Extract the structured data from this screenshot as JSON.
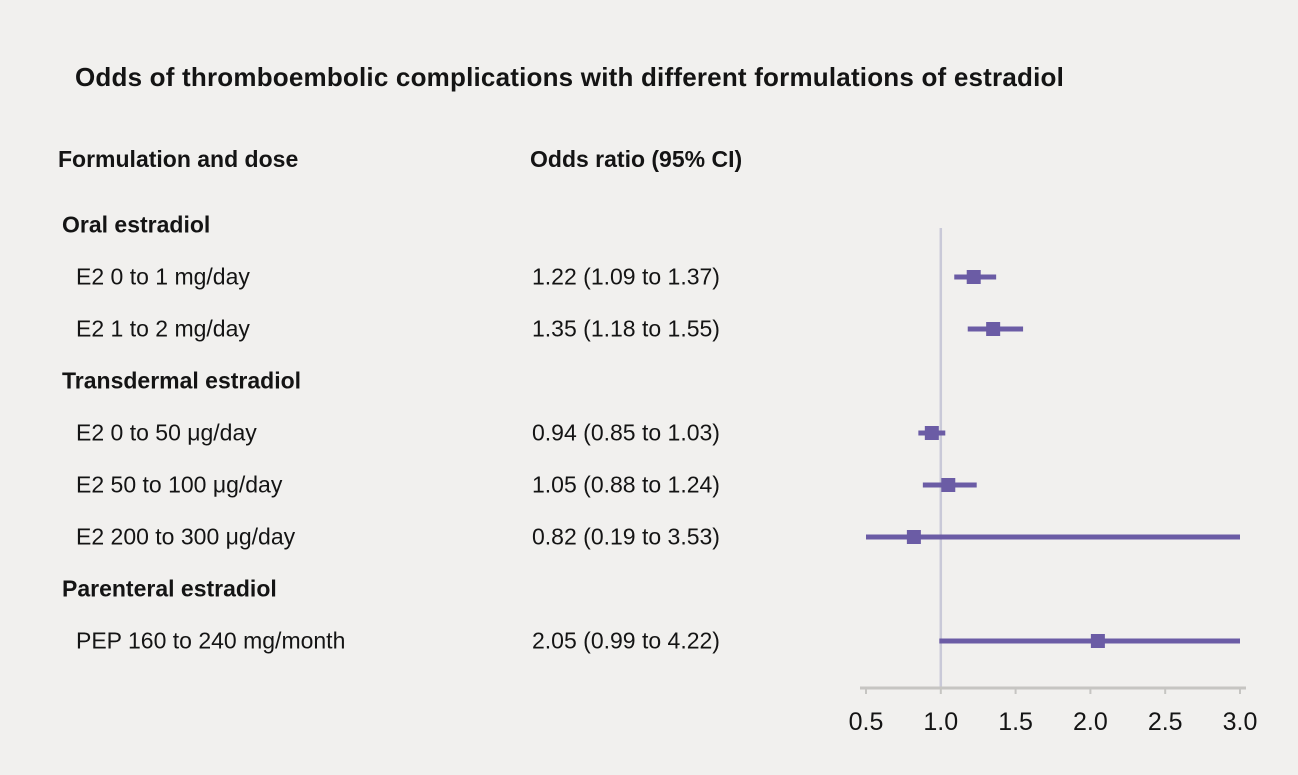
{
  "title": "Odds of thromboembolic complications with different formulations of estradiol",
  "columns": {
    "formulation": "Formulation and dose",
    "odds": "Odds ratio (95% CI)"
  },
  "chart_data": {
    "type": "forest",
    "xlim": [
      0.5,
      3.0
    ],
    "tick_values": [
      0.5,
      1.0,
      1.5,
      2.0,
      2.5,
      3.0
    ],
    "tick_labels": [
      "0.5",
      "1.0",
      "1.5",
      "2.0",
      "2.5",
      "3.0"
    ],
    "reference_line": 1.0,
    "rows": [
      {
        "type": "group",
        "label": "Oral estradiol"
      },
      {
        "type": "item",
        "label": "E2 0 to 1 mg/day",
        "ci_text": "1.22 (1.09 to 1.37)",
        "or": 1.22,
        "lo": 1.09,
        "hi": 1.37
      },
      {
        "type": "item",
        "label": "E2 1 to 2 mg/day",
        "ci_text": "1.35 (1.18 to 1.55)",
        "or": 1.35,
        "lo": 1.18,
        "hi": 1.55
      },
      {
        "type": "group",
        "label": "Transdermal estradiol"
      },
      {
        "type": "item",
        "label": "E2 0 to 50 μg/day",
        "ci_text": "0.94 (0.85 to 1.03)",
        "or": 0.94,
        "lo": 0.85,
        "hi": 1.03
      },
      {
        "type": "item",
        "label": "E2 50 to 100 μg/day",
        "ci_text": "1.05 (0.88 to 1.24)",
        "or": 1.05,
        "lo": 0.88,
        "hi": 1.24
      },
      {
        "type": "item",
        "label": "E2 200 to 300 μg/day",
        "ci_text": "0.82 (0.19 to 3.53)",
        "or": 0.82,
        "lo": 0.19,
        "hi": 3.53
      },
      {
        "type": "group",
        "label": "Parenteral estradiol"
      },
      {
        "type": "item",
        "label": "PEP 160 to 240 mg/month",
        "ci_text": "2.05 (0.99 to 4.22)",
        "or": 2.05,
        "lo": 0.99,
        "hi": 4.22
      }
    ]
  },
  "colors": {
    "background": "#f1f0ee",
    "marker": "#6b5ca5",
    "ci_line": "#6b5ca5",
    "reference_line": "#c9c9d8",
    "axis_line": "#c6c5c2",
    "text": "#141414"
  }
}
